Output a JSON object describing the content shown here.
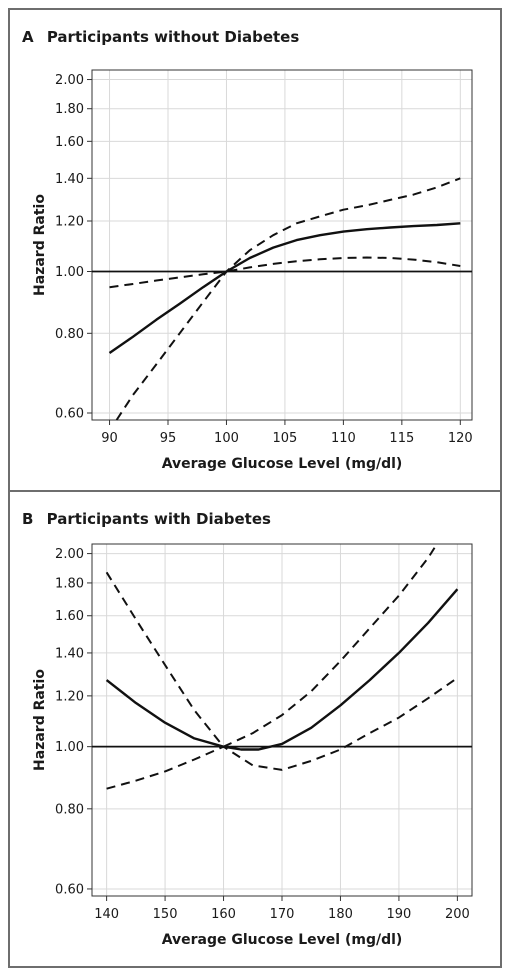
{
  "chart_data": [
    {
      "type": "line",
      "panel_letter": "A",
      "title": "Participants without Diabetes",
      "xlabel": "Average Glucose Level (mg/dl)",
      "ylabel": "Hazard Ratio",
      "y_scale": "log",
      "xlim": [
        88.5,
        121
      ],
      "ylim": [
        0.585,
        2.07
      ],
      "x_ticks": [
        90,
        95,
        100,
        105,
        110,
        115,
        120
      ],
      "x_tick_labels": [
        "90",
        "95",
        "100",
        "105",
        "110",
        "115",
        "120"
      ],
      "y_ticks": [
        0.6,
        0.8,
        1.0,
        1.2,
        1.4,
        1.6,
        1.8,
        2.0
      ],
      "y_tick_labels": [
        "0.60",
        "0.80",
        "1.00",
        "1.20",
        "1.40",
        "1.60",
        "1.80",
        "2.00"
      ],
      "grid": true,
      "reference_line": 1.0,
      "series": [
        {
          "style": "solid",
          "x": [
            90,
            92,
            94,
            96,
            98,
            100,
            102,
            104,
            106,
            108,
            110,
            112,
            114,
            116,
            118,
            120
          ],
          "y": [
            0.745,
            0.79,
            0.84,
            0.89,
            0.945,
            1.0,
            1.05,
            1.09,
            1.12,
            1.14,
            1.155,
            1.165,
            1.172,
            1.178,
            1.183,
            1.19
          ]
        },
        {
          "style": "dashed",
          "x": [
            90,
            92,
            94,
            96,
            98,
            100,
            102,
            104,
            106,
            108,
            110,
            112,
            114,
            116,
            118,
            120
          ],
          "y": [
            0.945,
            0.956,
            0.968,
            0.979,
            0.99,
            1.0,
            1.015,
            1.028,
            1.038,
            1.045,
            1.05,
            1.052,
            1.05,
            1.044,
            1.034,
            1.02
          ]
        },
        {
          "style": "dashed",
          "x": [
            90.6,
            92,
            94,
            96,
            98,
            100,
            102,
            104,
            106,
            108,
            110,
            112,
            114,
            116,
            118,
            120
          ],
          "y": [
            0.585,
            0.64,
            0.715,
            0.8,
            0.895,
            1.0,
            1.08,
            1.14,
            1.19,
            1.22,
            1.25,
            1.27,
            1.295,
            1.32,
            1.355,
            1.4
          ]
        }
      ]
    },
    {
      "type": "line",
      "panel_letter": "B",
      "title": "Participants with Diabetes",
      "xlabel": "Average Glucose Level (mg/dl)",
      "ylabel": "Hazard Ratio",
      "y_scale": "log",
      "xlim": [
        137.5,
        202.5
      ],
      "ylim": [
        0.585,
        2.07
      ],
      "x_ticks": [
        140,
        150,
        160,
        170,
        180,
        190,
        200
      ],
      "x_tick_labels": [
        "140",
        "150",
        "160",
        "170",
        "180",
        "190",
        "200"
      ],
      "y_ticks": [
        0.6,
        0.8,
        1.0,
        1.2,
        1.4,
        1.6,
        1.8,
        2.0
      ],
      "y_tick_labels": [
        "0.60",
        "0.80",
        "1.00",
        "1.20",
        "1.40",
        "1.60",
        "1.80",
        "2.00"
      ],
      "grid": true,
      "reference_line": 1.0,
      "series": [
        {
          "style": "solid",
          "x": [
            140,
            145,
            150,
            155,
            160,
            163,
            166,
            170,
            175,
            180,
            185,
            190,
            195,
            200
          ],
          "y": [
            1.27,
            1.17,
            1.09,
            1.03,
            1.0,
            0.99,
            0.99,
            1.01,
            1.07,
            1.16,
            1.27,
            1.4,
            1.56,
            1.76
          ]
        },
        {
          "style": "dashed",
          "x": [
            140,
            145,
            150,
            155,
            160,
            165,
            170,
            175,
            180,
            185,
            190,
            195,
            200
          ],
          "y": [
            0.86,
            0.885,
            0.915,
            0.955,
            1.0,
            0.935,
            0.92,
            0.95,
            0.99,
            1.05,
            1.11,
            1.19,
            1.28
          ]
        },
        {
          "style": "dashed",
          "x": [
            140,
            145,
            150,
            155,
            160,
            165,
            170,
            175,
            180,
            185,
            190,
            195,
            196.5
          ],
          "y": [
            1.87,
            1.58,
            1.34,
            1.14,
            1.0,
            1.05,
            1.12,
            1.22,
            1.36,
            1.53,
            1.72,
            1.97,
            2.07
          ]
        }
      ]
    }
  ]
}
